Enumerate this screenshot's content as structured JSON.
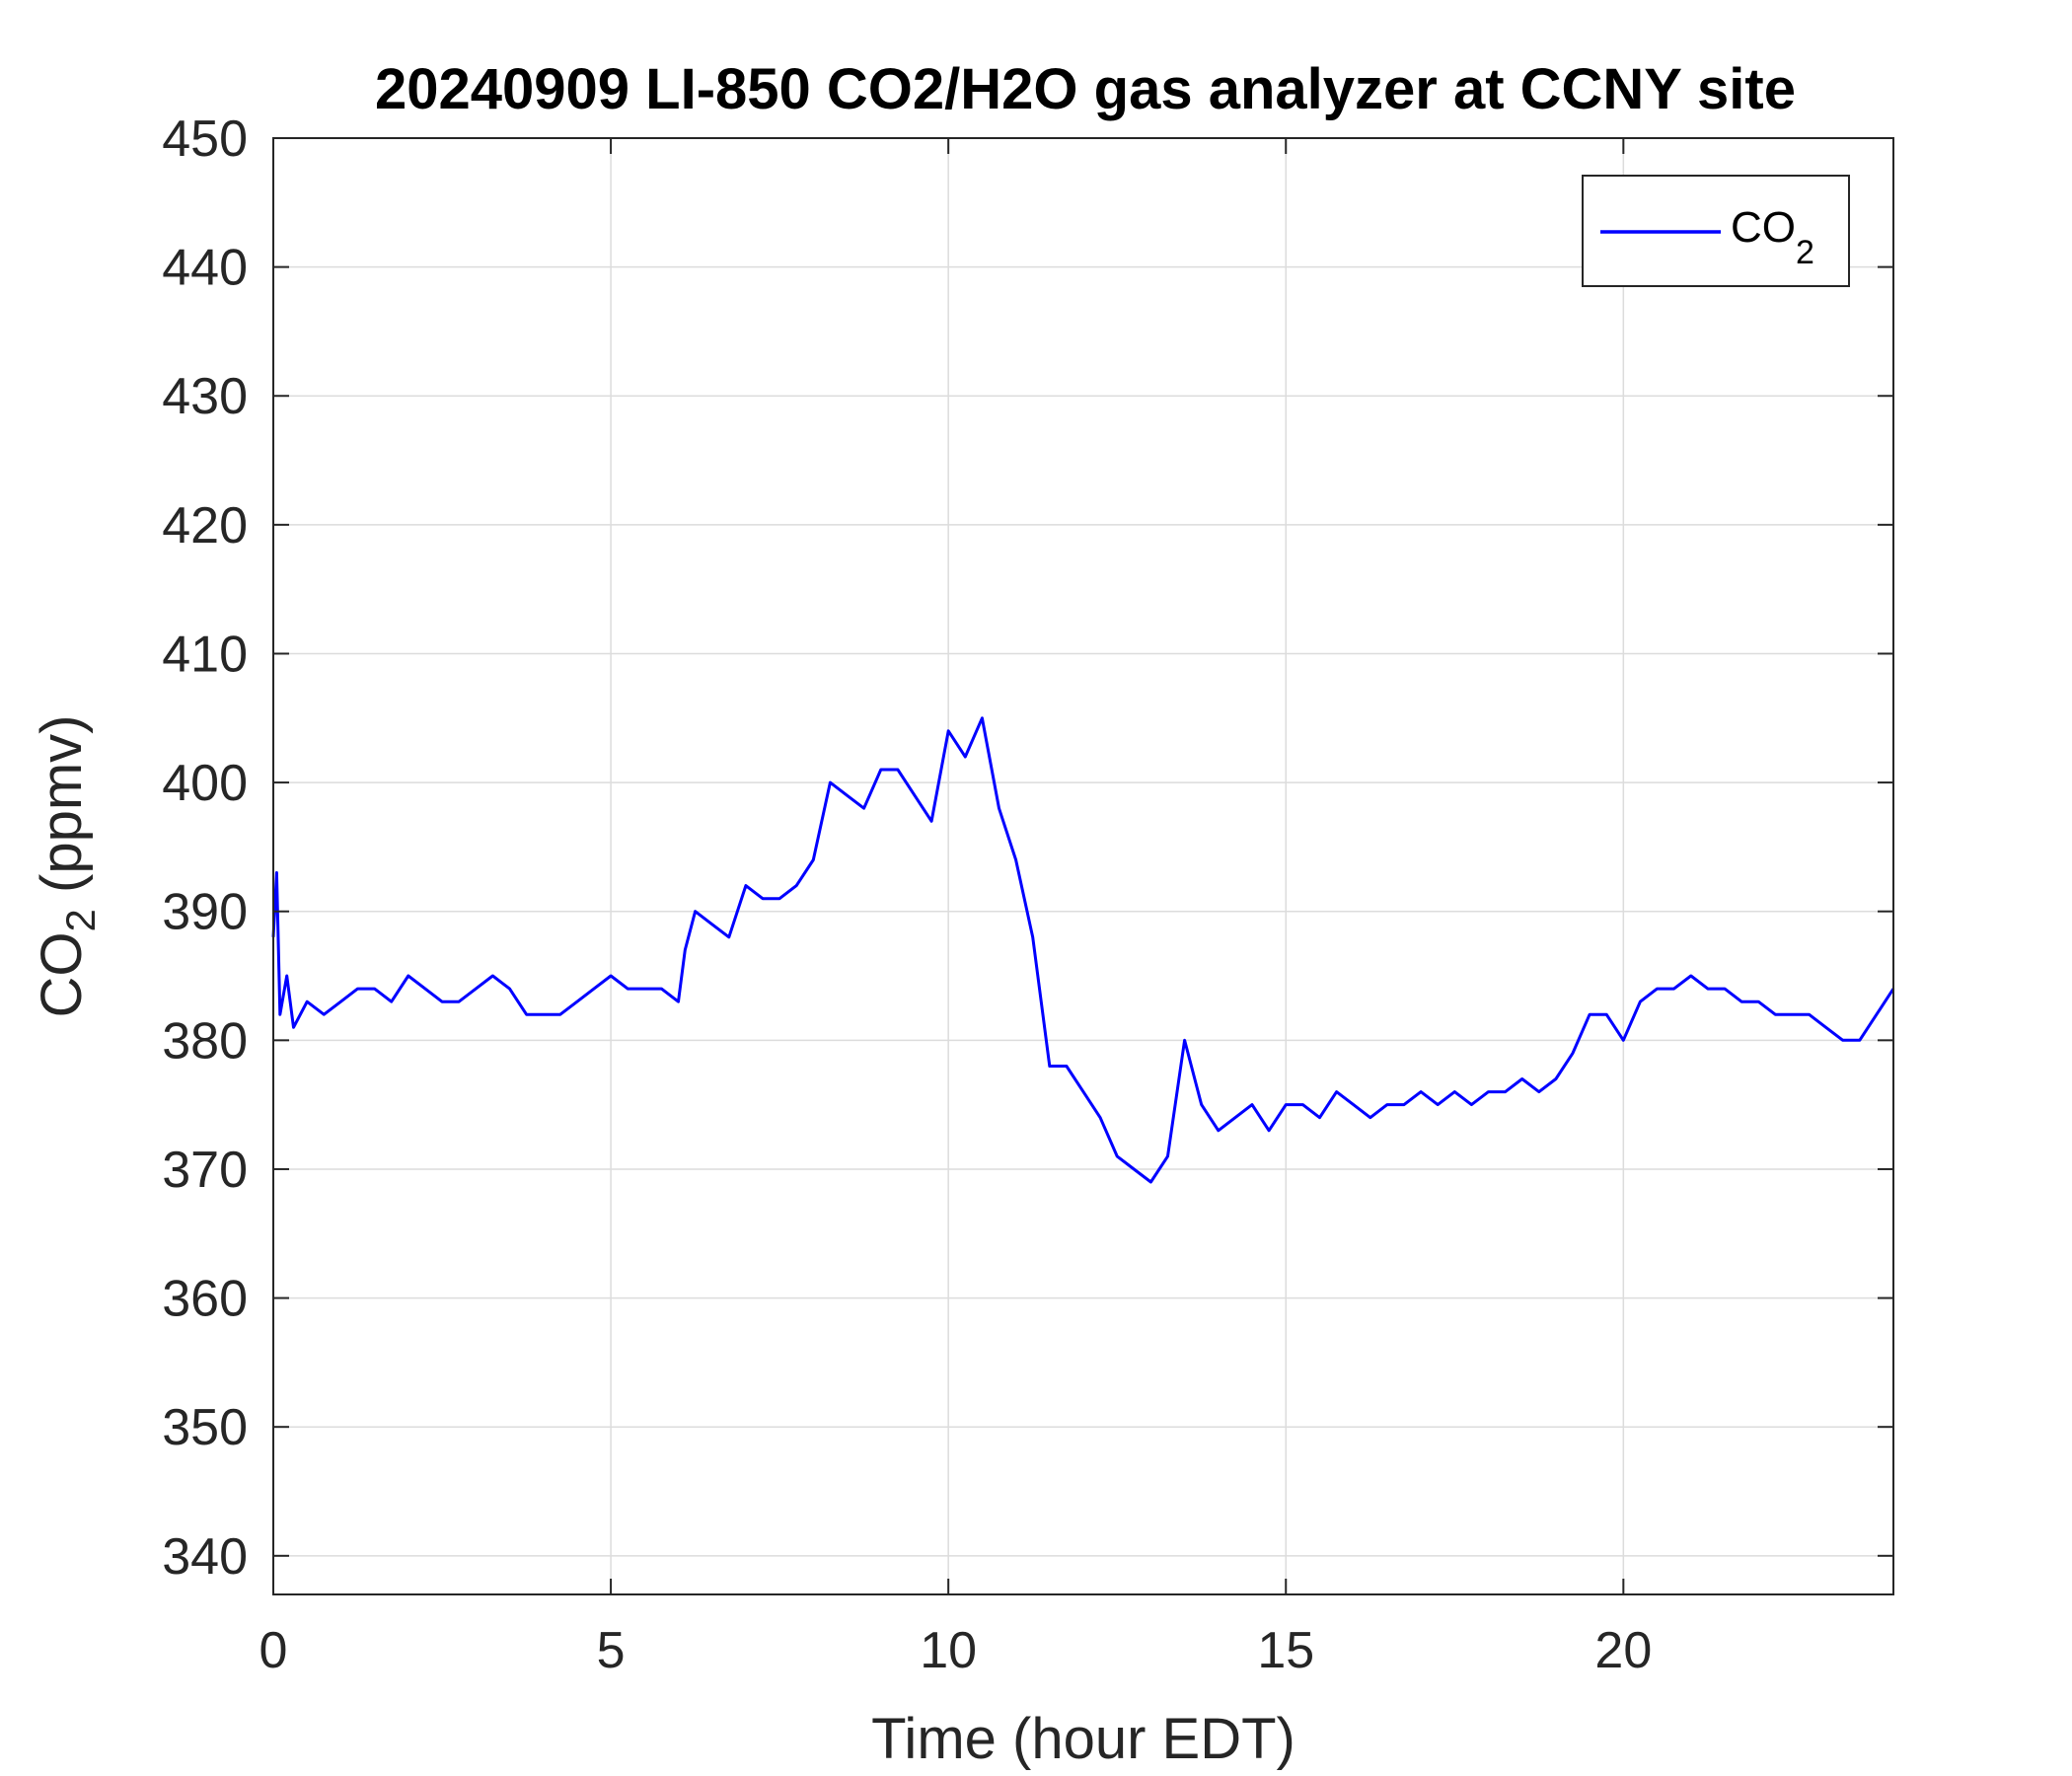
{
  "chart_data": {
    "type": "line",
    "title": "20240909 LI-850 CO2/H2O gas analyzer at CCNY site",
    "xlabel": "Time (hour EDT)",
    "ylabel_main": "CO",
    "ylabel_sub": "2",
    "ylabel_unit": " (ppmv)",
    "xlim": [
      0,
      24
    ],
    "ylim": [
      337,
      450
    ],
    "xticks": [
      0,
      5,
      10,
      15,
      20
    ],
    "yticks": [
      340,
      350,
      360,
      370,
      380,
      390,
      400,
      410,
      420,
      430,
      440,
      450
    ],
    "grid": true,
    "legend_position": "top-right",
    "series": [
      {
        "legend_main": "CO",
        "legend_sub": "2",
        "color": "#0000ff",
        "x": [
          0,
          0.05,
          0.1,
          0.2,
          0.3,
          0.5,
          0.75,
          1.0,
          1.25,
          1.5,
          1.75,
          2.0,
          2.25,
          2.5,
          2.75,
          3.0,
          3.25,
          3.5,
          3.75,
          4.0,
          4.25,
          4.5,
          4.75,
          5.0,
          5.25,
          5.5,
          5.75,
          6.0,
          6.1,
          6.25,
          6.5,
          6.75,
          7.0,
          7.25,
          7.5,
          7.75,
          8.0,
          8.25,
          8.5,
          8.75,
          9.0,
          9.25,
          9.5,
          9.75,
          10.0,
          10.25,
          10.5,
          10.75,
          11.0,
          11.25,
          11.5,
          11.75,
          12.0,
          12.25,
          12.5,
          12.75,
          13.0,
          13.25,
          13.5,
          13.75,
          14.0,
          14.25,
          14.5,
          14.75,
          15.0,
          15.25,
          15.5,
          15.75,
          16.0,
          16.25,
          16.5,
          16.75,
          17.0,
          17.25,
          17.5,
          17.75,
          18.0,
          18.25,
          18.5,
          18.75,
          19.0,
          19.25,
          19.5,
          19.75,
          20.0,
          20.25,
          20.5,
          20.75,
          21.0,
          21.25,
          21.5,
          21.75,
          22.0,
          22.25,
          22.5,
          22.75,
          23.0,
          23.25,
          23.5,
          23.75,
          24.0
        ],
        "y": [
          388,
          393,
          382,
          385,
          381,
          383,
          382,
          383,
          384,
          384,
          383,
          385,
          384,
          383,
          383,
          384,
          385,
          384,
          382,
          382,
          382,
          383,
          384,
          385,
          384,
          384,
          384,
          383,
          387,
          390,
          389,
          388,
          392,
          391,
          391,
          392,
          394,
          400,
          399,
          398,
          401,
          401,
          399,
          397,
          404,
          402,
          405,
          398,
          394,
          388,
          378,
          378,
          376,
          374,
          371,
          370,
          369,
          371,
          380,
          375,
          373,
          374,
          375,
          373,
          375,
          375,
          374,
          376,
          375,
          374,
          375,
          375,
          376,
          375,
          376,
          375,
          376,
          376,
          377,
          376,
          377,
          379,
          382,
          382,
          380,
          383,
          384,
          384,
          385,
          384,
          384,
          383,
          383,
          382,
          382,
          382,
          381,
          380,
          380,
          382,
          384
        ]
      }
    ]
  }
}
